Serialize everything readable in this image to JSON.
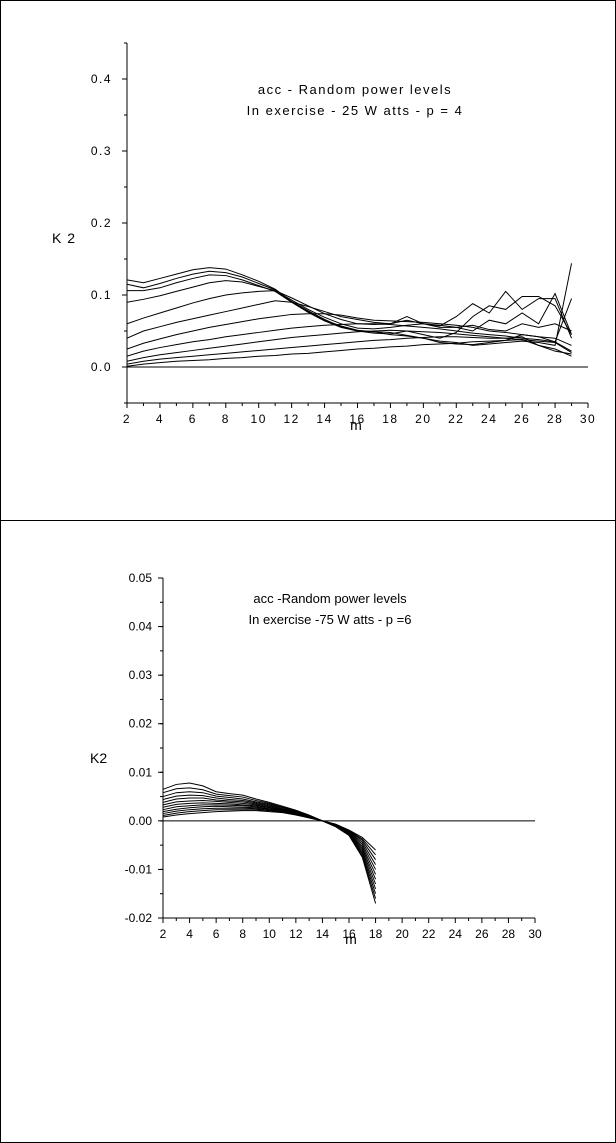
{
  "chart_data": [
    {
      "type": "line",
      "title": "acc - Random power levels",
      "subtitle": "In exercise - 25 W atts - p = 4",
      "xlabel": "m",
      "ylabel": "K 2",
      "xlim": [
        2,
        30
      ],
      "ylim": [
        -0.05,
        0.45
      ],
      "x_ticks": [
        "2",
        "4",
        "6",
        "8",
        "10",
        "12",
        "14",
        "16",
        "18",
        "20",
        "22",
        "24",
        "26",
        "28",
        "30"
      ],
      "y_ticks": [
        "0.0",
        "0.1",
        "0.2",
        "0.3",
        "0.4"
      ],
      "grid": false,
      "x": [
        2,
        3,
        4,
        5,
        6,
        7,
        8,
        9,
        10,
        11,
        12,
        13,
        14,
        15,
        16,
        17,
        18,
        19,
        20,
        21,
        22,
        23,
        24,
        25,
        26,
        27,
        28,
        29
      ],
      "series": [
        {
          "values": [
            0.121,
            0.117,
            0.123,
            0.129,
            0.135,
            0.138,
            0.136,
            0.128,
            0.119,
            0.108,
            0.091,
            0.078,
            0.066,
            0.056,
            0.05,
            0.049,
            0.048,
            0.044,
            0.04,
            0.036,
            0.034,
            0.03,
            0.032,
            0.034,
            0.036,
            0.034,
            0.03,
            0.144
          ]
        },
        {
          "values": [
            0.115,
            0.11,
            0.116,
            0.123,
            0.129,
            0.133,
            0.131,
            0.125,
            0.116,
            0.107,
            0.09,
            0.077,
            0.065,
            0.057,
            0.051,
            0.049,
            0.045,
            0.043,
            0.04,
            0.034,
            0.032,
            0.031,
            0.034,
            0.037,
            0.045,
            0.042,
            0.035,
            0.095
          ]
        },
        {
          "values": [
            0.106,
            0.106,
            0.11,
            0.117,
            0.123,
            0.128,
            0.127,
            0.121,
            0.113,
            0.105,
            0.09,
            0.076,
            0.064,
            0.055,
            0.05,
            0.047,
            0.046,
            0.05,
            0.045,
            0.04,
            0.048,
            0.07,
            0.085,
            0.08,
            0.098,
            0.098,
            0.085,
            0.045
          ]
        },
        {
          "values": [
            0.09,
            0.094,
            0.099,
            0.105,
            0.111,
            0.117,
            0.12,
            0.118,
            0.112,
            0.106,
            0.093,
            0.08,
            0.069,
            0.06,
            0.054,
            0.053,
            0.055,
            0.058,
            0.06,
            0.057,
            0.07,
            0.088,
            0.075,
            0.105,
            0.08,
            0.095,
            0.095,
            0.04
          ]
        },
        {
          "values": [
            0.06,
            0.068,
            0.075,
            0.082,
            0.089,
            0.095,
            0.1,
            0.103,
            0.105,
            0.106,
            0.096,
            0.085,
            0.074,
            0.066,
            0.06,
            0.059,
            0.06,
            0.07,
            0.06,
            0.055,
            0.055,
            0.05,
            0.065,
            0.06,
            0.075,
            0.06,
            0.102,
            0.045
          ]
        },
        {
          "values": [
            0.04,
            0.05,
            0.056,
            0.062,
            0.067,
            0.072,
            0.077,
            0.082,
            0.087,
            0.092,
            0.09,
            0.084,
            0.077,
            0.07,
            0.066,
            0.062,
            0.06,
            0.065,
            0.06,
            0.058,
            0.055,
            0.058,
            0.052,
            0.05,
            0.06,
            0.055,
            0.06,
            0.05
          ]
        },
        {
          "values": [
            0.025,
            0.033,
            0.039,
            0.045,
            0.05,
            0.055,
            0.059,
            0.063,
            0.067,
            0.07,
            0.073,
            0.074,
            0.074,
            0.072,
            0.068,
            0.065,
            0.064,
            0.063,
            0.062,
            0.06,
            0.058,
            0.055,
            0.05,
            0.048,
            0.045,
            0.042,
            0.04,
            0.03
          ]
        },
        {
          "values": [
            0.015,
            0.022,
            0.027,
            0.031,
            0.035,
            0.038,
            0.042,
            0.045,
            0.048,
            0.051,
            0.054,
            0.056,
            0.058,
            0.059,
            0.06,
            0.06,
            0.059,
            0.057,
            0.055,
            0.053,
            0.05,
            0.047,
            0.045,
            0.043,
            0.04,
            0.038,
            0.035,
            0.022
          ]
        },
        {
          "values": [
            0.008,
            0.013,
            0.017,
            0.02,
            0.023,
            0.026,
            0.029,
            0.032,
            0.035,
            0.038,
            0.041,
            0.043,
            0.045,
            0.047,
            0.049,
            0.05,
            0.051,
            0.05,
            0.049,
            0.048,
            0.046,
            0.044,
            0.042,
            0.04,
            0.038,
            0.036,
            0.034,
            0.02
          ]
        },
        {
          "values": [
            0.004,
            0.008,
            0.011,
            0.013,
            0.015,
            0.017,
            0.019,
            0.021,
            0.023,
            0.025,
            0.027,
            0.029,
            0.031,
            0.033,
            0.035,
            0.037,
            0.038,
            0.04,
            0.041,
            0.042,
            0.042,
            0.041,
            0.04,
            0.04,
            0.042,
            0.03,
            0.025,
            0.015
          ]
        },
        {
          "values": [
            0.001,
            0.004,
            0.006,
            0.008,
            0.009,
            0.01,
            0.012,
            0.013,
            0.015,
            0.016,
            0.018,
            0.019,
            0.021,
            0.023,
            0.025,
            0.026,
            0.028,
            0.029,
            0.031,
            0.032,
            0.033,
            0.035,
            0.036,
            0.037,
            0.038,
            0.03,
            0.022,
            0.018
          ]
        }
      ]
    },
    {
      "type": "line",
      "title": "acc -Random power levels",
      "subtitle": "In exercise -75 W atts - p =6",
      "xlabel": "m",
      "ylabel": "K2",
      "xlim": [
        2,
        30
      ],
      "ylim": [
        -0.02,
        0.05
      ],
      "x_ticks": [
        "2",
        "4",
        "6",
        "8",
        "10",
        "12",
        "14",
        "16",
        "18",
        "20",
        "22",
        "24",
        "26",
        "28",
        "30"
      ],
      "y_ticks": [
        "-0.02",
        "-0.01",
        "0.00",
        "0.01",
        "0.02",
        "0.03",
        "0.04",
        "0.05"
      ],
      "grid": false,
      "x": [
        2,
        3,
        4,
        5,
        6,
        7,
        8,
        9,
        10,
        11,
        12,
        13,
        14,
        15,
        16,
        17,
        18
      ],
      "series": [
        {
          "values": [
            0.0065,
            0.0075,
            0.0078,
            0.0072,
            0.006,
            0.0056,
            0.0053,
            0.0045,
            0.0038,
            0.003,
            0.0022,
            0.0012,
            0.0,
            -0.0012,
            -0.003,
            -0.0075,
            -0.017
          ]
        },
        {
          "values": [
            0.0058,
            0.0066,
            0.0068,
            0.0064,
            0.0055,
            0.0052,
            0.0049,
            0.0042,
            0.0036,
            0.0028,
            0.0021,
            0.0011,
            0.0,
            -0.0012,
            -0.0029,
            -0.0072,
            -0.016
          ]
        },
        {
          "values": [
            0.005,
            0.0058,
            0.006,
            0.0058,
            0.0051,
            0.0048,
            0.0045,
            0.0039,
            0.0034,
            0.0027,
            0.002,
            0.001,
            0.0,
            -0.0011,
            -0.0028,
            -0.0068,
            -0.015
          ]
        },
        {
          "values": [
            0.0044,
            0.0051,
            0.0053,
            0.0052,
            0.0047,
            0.0044,
            0.0042,
            0.0037,
            0.0032,
            0.0025,
            0.0019,
            0.001,
            0.0,
            -0.0011,
            -0.0027,
            -0.0064,
            -0.014
          ]
        },
        {
          "values": [
            0.0038,
            0.0045,
            0.0047,
            0.0047,
            0.0043,
            0.0041,
            0.0039,
            0.0035,
            0.003,
            0.0024,
            0.0018,
            0.0009,
            0.0,
            -0.001,
            -0.0026,
            -0.006,
            -0.013
          ]
        },
        {
          "values": [
            0.0033,
            0.0039,
            0.0041,
            0.0042,
            0.004,
            0.0038,
            0.0036,
            0.0033,
            0.0028,
            0.0023,
            0.0017,
            0.0009,
            0.0,
            -0.001,
            -0.0025,
            -0.0056,
            -0.012
          ]
        },
        {
          "values": [
            0.0028,
            0.0034,
            0.0036,
            0.0037,
            0.0036,
            0.0035,
            0.0033,
            0.0031,
            0.0027,
            0.0022,
            0.0016,
            0.0008,
            0.0,
            -0.0009,
            -0.0024,
            -0.0052,
            -0.011
          ]
        },
        {
          "values": [
            0.0023,
            0.0029,
            0.0031,
            0.0033,
            0.0033,
            0.0032,
            0.0031,
            0.0029,
            0.0025,
            0.0021,
            0.0015,
            0.0008,
            0.0,
            -0.0009,
            -0.0023,
            -0.0048,
            -0.01
          ]
        },
        {
          "values": [
            0.0019,
            0.0024,
            0.0027,
            0.0029,
            0.003,
            0.0029,
            0.0028,
            0.0027,
            0.0024,
            0.002,
            0.0014,
            0.0007,
            0.0,
            -0.0008,
            -0.0022,
            -0.0044,
            -0.009
          ]
        },
        {
          "values": [
            0.0015,
            0.002,
            0.0023,
            0.0025,
            0.0026,
            0.0026,
            0.0026,
            0.0025,
            0.0022,
            0.0019,
            0.0013,
            0.0007,
            0.0,
            -0.0008,
            -0.0021,
            -0.004,
            -0.008
          ]
        },
        {
          "values": [
            0.0011,
            0.0016,
            0.0019,
            0.0021,
            0.0023,
            0.0023,
            0.0023,
            0.0023,
            0.0021,
            0.0018,
            0.0013,
            0.0006,
            0.0,
            -0.0007,
            -0.002,
            -0.0037,
            -0.007
          ]
        },
        {
          "values": [
            0.0008,
            0.0012,
            0.0015,
            0.0017,
            0.0019,
            0.002,
            0.0021,
            0.0021,
            0.0019,
            0.0017,
            0.0012,
            0.0006,
            0.0,
            -0.0007,
            -0.0019,
            -0.0034,
            -0.006
          ]
        }
      ]
    }
  ]
}
